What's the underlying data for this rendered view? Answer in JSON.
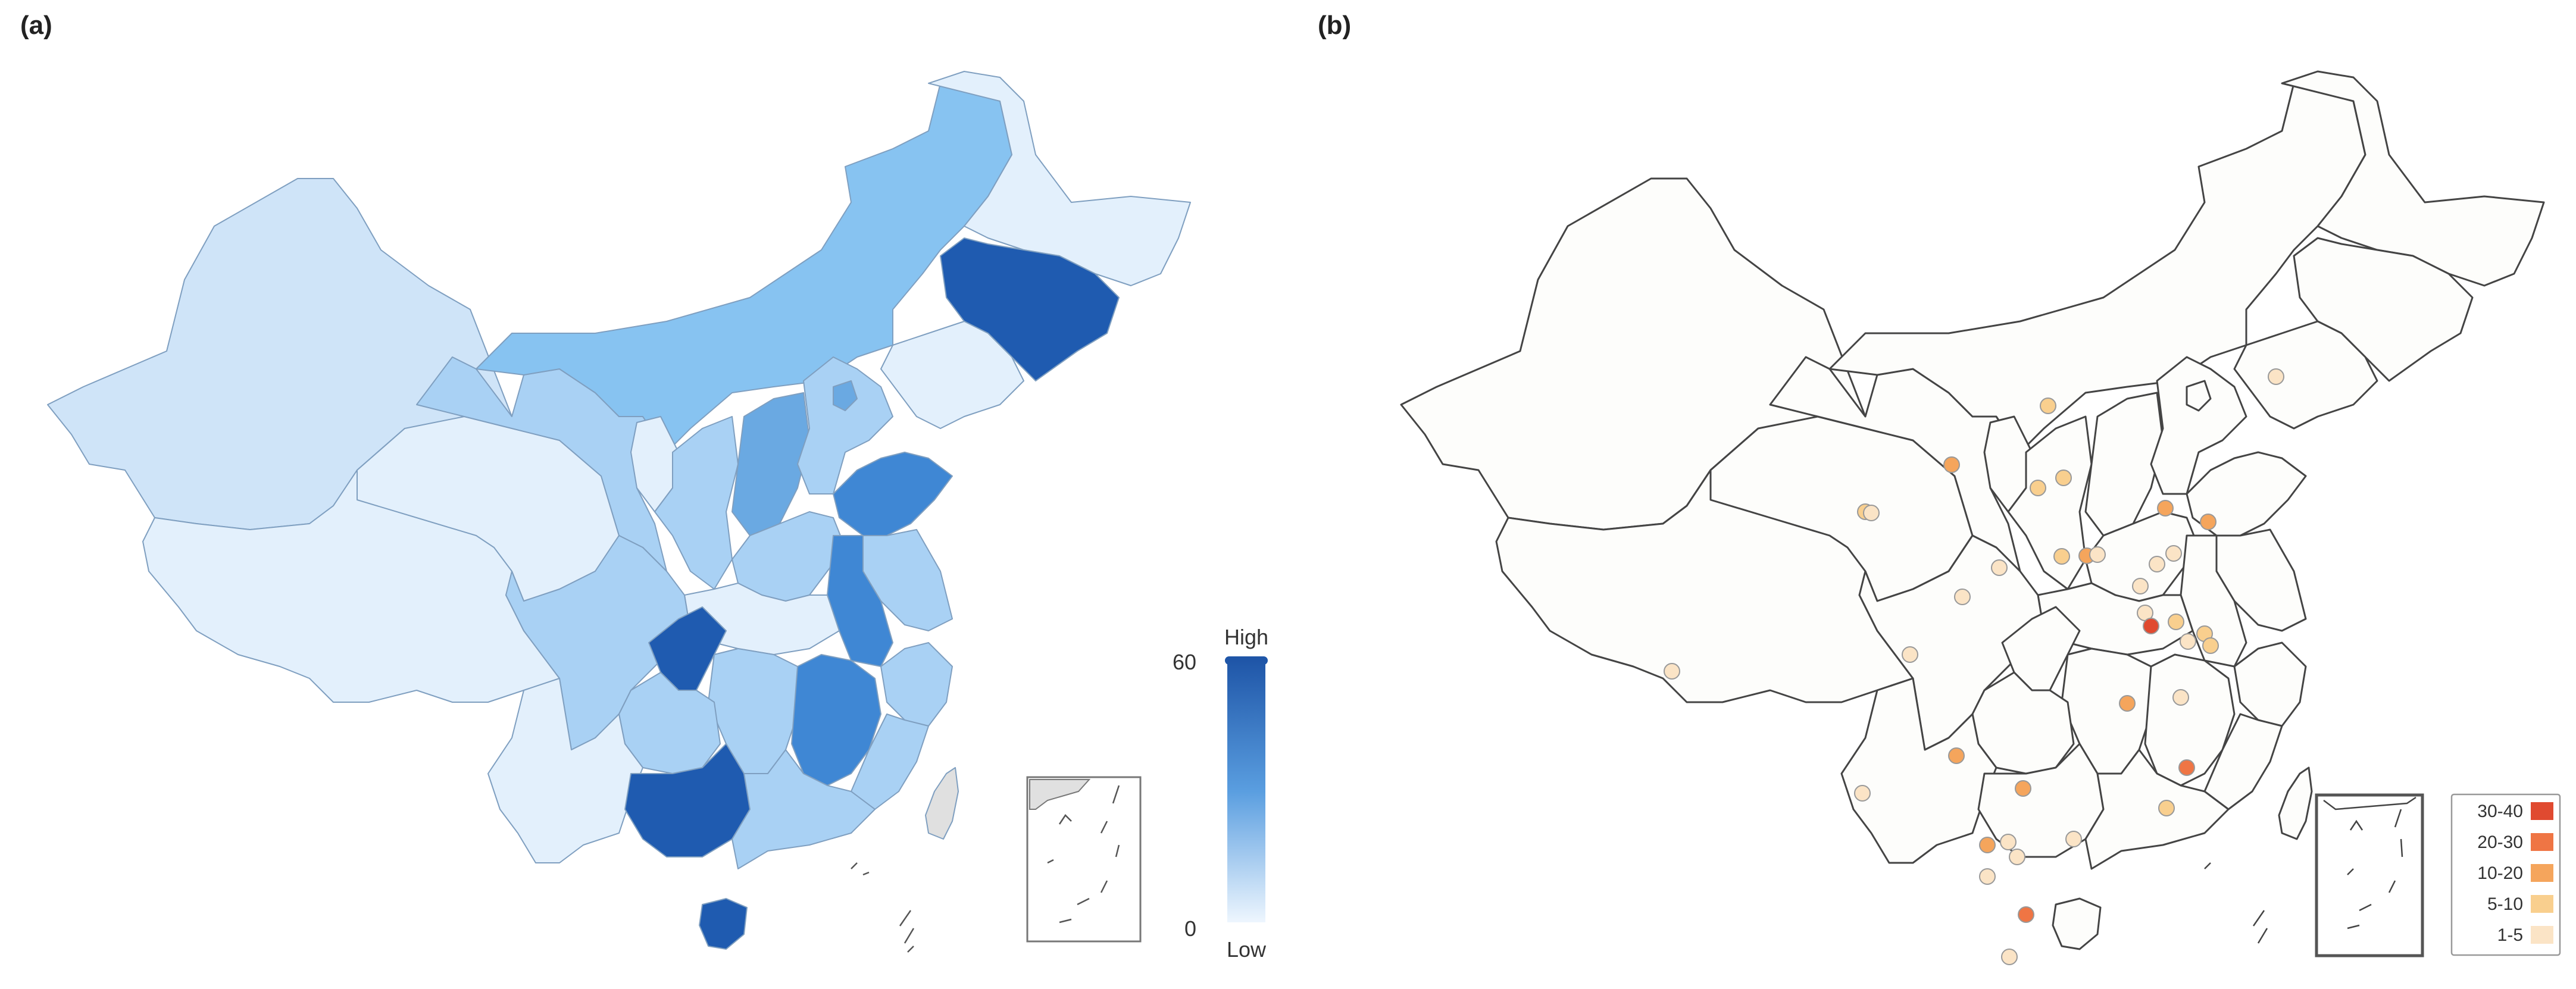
{
  "panels": {
    "a": {
      "label": "(a)"
    },
    "b": {
      "label": "(b)"
    }
  },
  "colorbar": {
    "high_label": "High",
    "low_label": "Low",
    "max_value": "60",
    "min_value": "0",
    "color_high": "#1f56a8",
    "color_low": "#eef6fe"
  },
  "choropleth_colors": {
    "lightest": "#e3f0fc",
    "light": "#cfe4f8",
    "mid_light": "#a9d1f4",
    "mid": "#87c3f1",
    "mid_dark": "#6aa9e2",
    "dark": "#3f87d4",
    "darkest": "#1f5bb0"
  },
  "point_legend": {
    "items": [
      {
        "label": "30-40",
        "color": "#e04a30"
      },
      {
        "label": "20-30",
        "color": "#ef7544"
      },
      {
        "label": "10-20",
        "color": "#f5a55c"
      },
      {
        "label": "5-10",
        "color": "#f9cf8e"
      },
      {
        "label": "1-5",
        "color": "#fbe4c6"
      }
    ]
  },
  "point_colors": {
    "c1": "#fbe4c6",
    "c2": "#f9cf8e",
    "c3": "#f5a55c",
    "c4": "#ef7544",
    "c5": "#e04a30"
  }
}
